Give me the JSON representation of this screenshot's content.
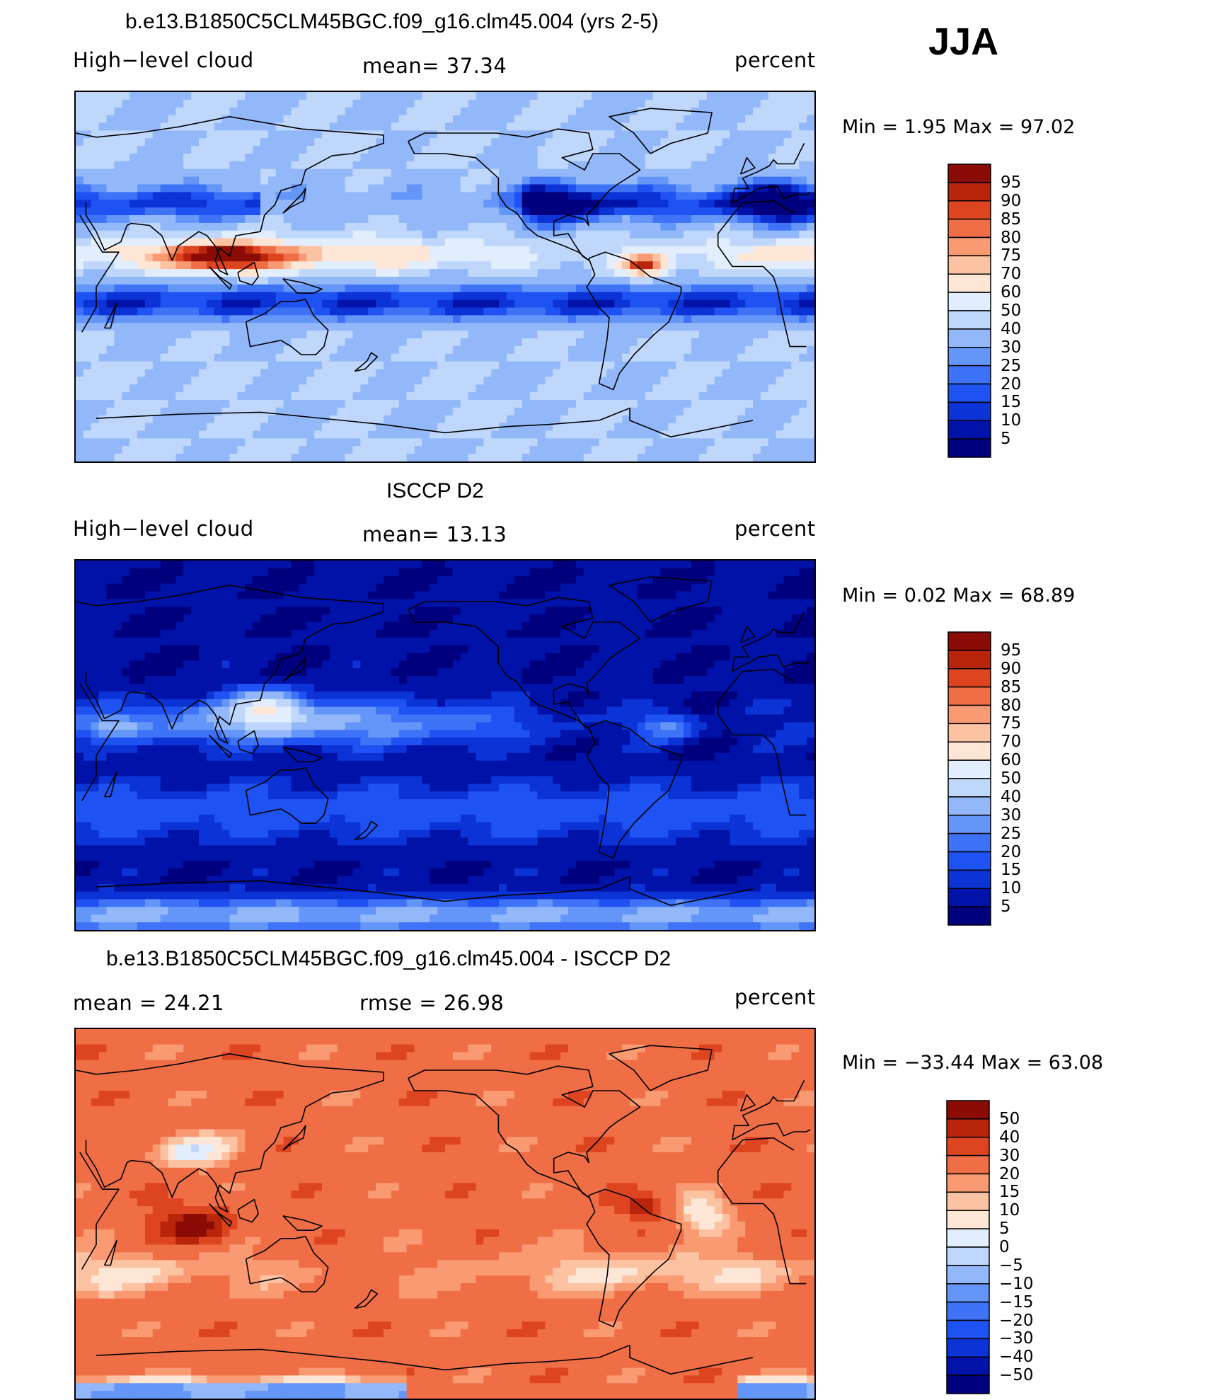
{
  "season": "JJA",
  "panels": [
    {
      "id": "model",
      "title": "b.e13.B1850C5CLM45BGC.f09_g16.clm45.004 (yrs 2-5)",
      "left_label": "High−level cloud",
      "center_label": "mean=   37.34",
      "units": "percent",
      "minmax": "Min  =     1.95  Max  =    97.02"
    },
    {
      "id": "obs",
      "title": "ISCCP D2",
      "left_label": "High−level cloud",
      "center_label": "mean=   13.13",
      "units": "percent",
      "minmax": "Min  =     0.02  Max  =    68.89"
    },
    {
      "id": "diff",
      "title": "b.e13.B1850C5CLM45BGC.f09_g16.clm45.004 - ISCCP D2",
      "left_label": "mean  =    24.21",
      "center_label": "rmse  =    26.98",
      "units": "percent",
      "minmax": "Min  = −33.44  Max  =    63.08"
    }
  ],
  "chart_data": [
    {
      "type": "heatmap",
      "title": "b.e13.B1850C5CLM45BGC.f09_g16.clm45.004 (yrs 2-5)",
      "variable": "High-level cloud",
      "units": "percent",
      "mean": 37.34,
      "min": 1.95,
      "max": 97.02,
      "levels": [
        5,
        10,
        15,
        20,
        25,
        30,
        40,
        50,
        60,
        70,
        75,
        80,
        85,
        90,
        95
      ],
      "level_labels": [
        "95",
        "90",
        "85",
        "80",
        "75",
        "70",
        "60",
        "50",
        "40",
        "30",
        "25",
        "20",
        "15",
        "10",
        "5"
      ],
      "colors": [
        "#00007f",
        "#0012a8",
        "#0b33d6",
        "#1f52f2",
        "#3e73f7",
        "#6495f8",
        "#93b8fa",
        "#c0d7fc",
        "#e2edfd",
        "#fde6d6",
        "#fcc3a3",
        "#f99a73",
        "#f06e45",
        "#dd4420",
        "#b8250b",
        "#8a0c04"
      ]
    },
    {
      "type": "heatmap",
      "title": "ISCCP D2",
      "variable": "High-level cloud",
      "units": "percent",
      "mean": 13.13,
      "min": 0.02,
      "max": 68.89,
      "levels": [
        5,
        10,
        15,
        20,
        25,
        30,
        40,
        50,
        60,
        70,
        75,
        80,
        85,
        90,
        95
      ],
      "level_labels": [
        "95",
        "90",
        "85",
        "80",
        "75",
        "70",
        "60",
        "50",
        "40",
        "30",
        "25",
        "20",
        "15",
        "10",
        "5"
      ],
      "colors": [
        "#00007f",
        "#0012a8",
        "#0b33d6",
        "#1f52f2",
        "#3e73f7",
        "#6495f8",
        "#93b8fa",
        "#c0d7fc",
        "#e2edfd",
        "#fde6d6",
        "#fcc3a3",
        "#f99a73",
        "#f06e45",
        "#dd4420",
        "#b8250b",
        "#8a0c04"
      ]
    },
    {
      "type": "heatmap",
      "title": "b.e13.B1850C5CLM45BGC.f09_g16.clm45.004 - ISCCP D2",
      "variable": "High-level cloud difference",
      "units": "percent",
      "mean": 24.21,
      "rmse": 26.98,
      "min": -33.44,
      "max": 63.08,
      "levels": [
        -50,
        -40,
        -30,
        -20,
        -15,
        -10,
        -5,
        0,
        5,
        10,
        15,
        20,
        30,
        40,
        50
      ],
      "level_labels": [
        "50",
        "40",
        "30",
        "20",
        "15",
        "10",
        "5",
        "0",
        "−5",
        "−10",
        "−15",
        "−20",
        "−30",
        "−40",
        "−50"
      ],
      "colors": [
        "#00007f",
        "#0012a8",
        "#0b33d6",
        "#1f52f2",
        "#3e73f7",
        "#6495f8",
        "#93b8fa",
        "#c0d7fc",
        "#e2edfd",
        "#fde6d6",
        "#fcc3a3",
        "#f99a73",
        "#f06e45",
        "#dd4420",
        "#b8250b",
        "#8a0c04"
      ]
    }
  ]
}
